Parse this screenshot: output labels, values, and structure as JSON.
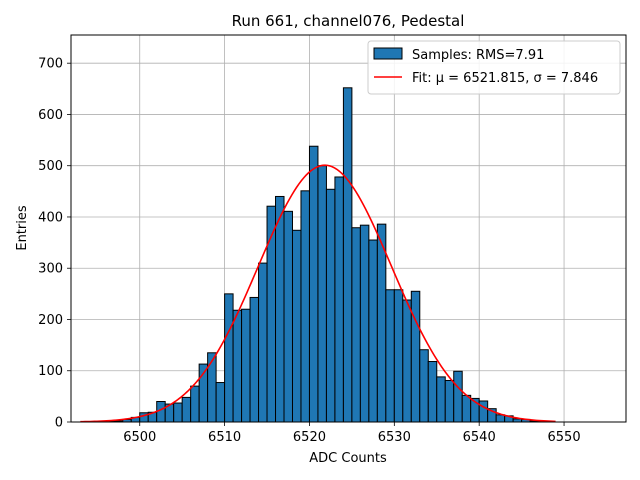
{
  "chart_data": {
    "type": "bar",
    "title": "Run 661, channel076, Pedestal",
    "xlabel": "ADC Counts",
    "ylabel": "Entries",
    "xlim": [
      6491.9,
      6557.3
    ],
    "ylim": [
      0,
      755
    ],
    "xticks": [
      6500,
      6510,
      6520,
      6530,
      6540,
      6550
    ],
    "yticks": [
      0,
      100,
      200,
      300,
      400,
      500,
      600,
      700
    ],
    "grid": true,
    "legend_position": "top-right",
    "colors": {
      "bar_fill": "#1f77b4",
      "bar_edge": "#000000",
      "fit_line": "#ff0000"
    },
    "histogram": {
      "name": "Samples: RMS=7.91",
      "bin_start": 6494,
      "bin_width": 1,
      "counts": [
        0,
        0,
        1,
        2,
        5,
        9,
        18,
        19,
        40,
        35,
        37,
        48,
        70,
        113,
        135,
        77,
        250,
        218,
        220,
        243,
        310,
        421,
        440,
        411,
        374,
        451,
        538,
        500,
        454,
        478,
        652,
        379,
        384,
        355,
        386,
        258,
        258,
        238,
        255,
        141,
        118,
        88,
        81,
        99,
        52,
        46,
        41,
        26,
        14,
        12,
        6,
        5,
        2,
        1,
        0
      ]
    },
    "fit": {
      "name": "Fit: μ = 6521.815, σ = 7.846",
      "mu": 6521.815,
      "sigma": 7.846,
      "amplitude": 501,
      "x_range": [
        6493,
        6549
      ]
    }
  }
}
